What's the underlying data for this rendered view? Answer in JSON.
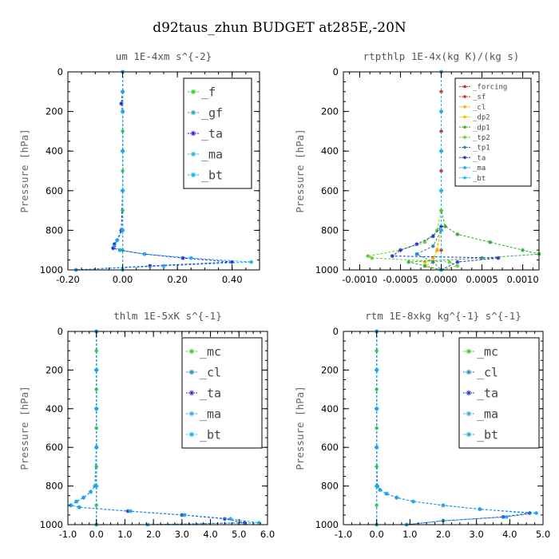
{
  "figure": {
    "title": "d92taus_zhun  BUDGET at285E,-20N"
  },
  "chart_data": [
    {
      "type": "line",
      "title": "um   1E-4xm  s^{-2}",
      "ylabel": "Pressure [hPa]",
      "xlim": [
        -0.2,
        0.5
      ],
      "ylim": [
        1000,
        0
      ],
      "grid": false,
      "xticks": [
        -0.2,
        0.0,
        0.2,
        0.4
      ],
      "xtick_labels": [
        "-0.20",
        "0.00",
        "0.20",
        "0.40"
      ],
      "yticks": [
        0,
        200,
        400,
        600,
        800,
        1000
      ],
      "legend": {
        "position": "top-right",
        "entries": [
          "_f",
          "_gf",
          "_ta",
          "_ma",
          "_bt"
        ]
      },
      "series": [
        {
          "name": "_f",
          "color": "#33cc33",
          "y": [
            0,
            100,
            200,
            300,
            400,
            500,
            600,
            700,
            800,
            900,
            1000
          ],
          "x": [
            0,
            0,
            0,
            0,
            0,
            0,
            0,
            0,
            0,
            0,
            0
          ]
        },
        {
          "name": "_gf",
          "color": "#3399cc",
          "y": [
            0,
            200,
            400,
            600,
            800,
            1000
          ],
          "x": [
            0,
            0,
            0,
            0,
            0,
            0
          ]
        },
        {
          "name": "_ta",
          "color": "#2222cc",
          "y": [
            0,
            100,
            160,
            200,
            400,
            600,
            800,
            850,
            870,
            890,
            900,
            920,
            940,
            960,
            980,
            1000
          ],
          "x": [
            0,
            0,
            -0.005,
            0,
            0,
            0,
            -0.005,
            -0.02,
            -0.03,
            -0.035,
            -0.01,
            0.08,
            0.22,
            0.4,
            0.1,
            -0.17
          ]
        },
        {
          "name": "_ma",
          "color": "#33aadd",
          "y": [
            0,
            200,
            400,
            600,
            800,
            1000
          ],
          "x": [
            0,
            0,
            0,
            0,
            0,
            0
          ]
        },
        {
          "name": "_bt",
          "color": "#11aaee",
          "y": [
            0,
            100,
            200,
            400,
            600,
            800,
            850,
            880,
            900,
            920,
            940,
            960,
            980,
            1000
          ],
          "x": [
            0,
            0,
            0,
            0,
            0,
            0,
            -0.02,
            -0.03,
            -0.01,
            0.08,
            0.25,
            0.47,
            0.15,
            -0.17
          ]
        }
      ]
    },
    {
      "type": "line",
      "title": "rtpthlp  1E-4x(kg K)/(kg s)",
      "ylabel": "Pressure [hPa]",
      "xlim": [
        -0.0012,
        0.0012
      ],
      "ylim": [
        1000,
        0
      ],
      "grid": false,
      "xticks": [
        -0.001,
        -0.0005,
        0.0,
        0.0005,
        0.001
      ],
      "xtick_labels": [
        "-0.0010",
        "-0.0005",
        "0.0000",
        "0.0005",
        "0.0010"
      ],
      "yticks": [
        0,
        200,
        400,
        600,
        800,
        1000
      ],
      "legend": {
        "position": "top-right",
        "entries": [
          "_forcing",
          "_sf",
          "_cl",
          "_dp2",
          "_dp1",
          "_tp2",
          "_tp1",
          "_ta",
          "_ma",
          "_bt"
        ]
      },
      "series": [
        {
          "name": "_forcing",
          "color": "#cc2222",
          "y": [
            0,
            200,
            400,
            600,
            800,
            1000
          ],
          "x": [
            0,
            0,
            0,
            0,
            0,
            0
          ]
        },
        {
          "name": "_sf",
          "color": "#dd2222",
          "y": [
            0,
            100,
            200,
            300,
            400,
            500,
            600,
            700,
            800,
            900,
            1000
          ],
          "x": [
            0,
            0,
            0,
            0,
            0,
            0,
            0,
            0,
            0,
            0,
            0
          ]
        },
        {
          "name": "_cl",
          "color": "#ffaa00",
          "y": [
            0,
            800,
            900,
            940,
            960,
            980,
            1000
          ],
          "x": [
            0,
            0,
            -5e-05,
            -0.0001,
            -0.0002,
            -0.0002,
            0
          ]
        },
        {
          "name": "_dp2",
          "color": "#ddcc00",
          "y": [
            0,
            800,
            960,
            980,
            1000
          ],
          "x": [
            0,
            0,
            -0.0001,
            -0.0002,
            0
          ]
        },
        {
          "name": "_dp1",
          "color": "#33aa33",
          "y": [
            0,
            700,
            780,
            820,
            860,
            900,
            920,
            940,
            960,
            980,
            1000
          ],
          "x": [
            0,
            0,
            5e-05,
            0.0002,
            0.0006,
            0.001,
            0.0012,
            0.0005,
            -0.0004,
            -0.0002,
            0
          ]
        },
        {
          "name": "_tp2",
          "color": "#66cc33",
          "y": [
            0,
            700,
            800,
            860,
            900,
            930,
            940,
            960,
            980,
            1000
          ],
          "x": [
            0,
            0,
            -5e-05,
            -0.0002,
            -0.0005,
            -0.0009,
            -0.00085,
            0.0001,
            0.0002,
            0
          ]
        },
        {
          "name": "_tp1",
          "color": "#2288aa",
          "y": [
            0,
            800,
            880,
            920,
            960,
            1000
          ],
          "x": [
            0,
            0,
            -0.0001,
            -0.0003,
            -0.0001,
            0
          ]
        },
        {
          "name": "_ta",
          "color": "#2233cc",
          "y": [
            0,
            780,
            830,
            870,
            900,
            930,
            940,
            960,
            1000
          ],
          "x": [
            0,
            0,
            -0.0001,
            -0.0003,
            -0.0005,
            -0.0006,
            0.0007,
            0.0002,
            0
          ]
        },
        {
          "name": "_ma",
          "color": "#3399dd",
          "y": [
            0,
            200,
            400,
            600,
            800,
            1000
          ],
          "x": [
            0,
            0,
            0,
            0,
            0,
            0
          ]
        },
        {
          "name": "_bt",
          "color": "#11bbee",
          "y": [
            0,
            200,
            400,
            600,
            800,
            1000
          ],
          "x": [
            0,
            0,
            0,
            0,
            0,
            0
          ]
        }
      ]
    },
    {
      "type": "line",
      "title": "thlm   1E-5xK  s^{-1}",
      "ylabel": "Pressure [hPa]",
      "xlim": [
        -1.0,
        6.0
      ],
      "ylim": [
        1000,
        0
      ],
      "grid": false,
      "xticks": [
        -1,
        0,
        1,
        2,
        3,
        4,
        5,
        6
      ],
      "xtick_labels": [
        "-1.0",
        "0.0",
        "1.0",
        "2.0",
        "3.0",
        "4.0",
        "5.0",
        "6.0"
      ],
      "yticks": [
        0,
        200,
        400,
        600,
        800,
        1000
      ],
      "legend": {
        "position": "top-right",
        "entries": [
          "_mc",
          "_cl",
          "_ta",
          "_ma",
          "_bt"
        ]
      },
      "series": [
        {
          "name": "_mc",
          "color": "#33cc33",
          "y": [
            0,
            100,
            200,
            300,
            400,
            500,
            600,
            700,
            800,
            900,
            1000
          ],
          "x": [
            0,
            0,
            0,
            0,
            0,
            0,
            0,
            0,
            0,
            0,
            0
          ]
        },
        {
          "name": "_cl",
          "color": "#2288bb",
          "y": [
            0,
            200,
            400,
            600,
            800,
            1000
          ],
          "x": [
            0,
            0,
            0,
            0,
            0,
            0
          ]
        },
        {
          "name": "_ta",
          "color": "#2233cc",
          "y": [
            0,
            200,
            400,
            600,
            800,
            830,
            860,
            880,
            900,
            910,
            930,
            950,
            970,
            990,
            1000
          ],
          "x": [
            0,
            0,
            0,
            0,
            -0.05,
            -0.2,
            -0.45,
            -0.7,
            -0.9,
            -0.6,
            1.1,
            3.0,
            4.5,
            5.2,
            1.8
          ]
        },
        {
          "name": "_ma",
          "color": "#33aadd",
          "y": [
            0,
            200,
            400,
            600,
            800,
            1000
          ],
          "x": [
            0,
            0,
            0,
            0,
            0,
            0
          ]
        },
        {
          "name": "_bt",
          "color": "#11aaee",
          "y": [
            0,
            200,
            400,
            600,
            800,
            830,
            860,
            880,
            900,
            910,
            930,
            950,
            970,
            990,
            1000
          ],
          "x": [
            0,
            0,
            0,
            0,
            -0.05,
            -0.2,
            -0.45,
            -0.7,
            -0.9,
            -0.6,
            1.2,
            3.1,
            4.7,
            5.7,
            1.8
          ]
        }
      ]
    },
    {
      "type": "line",
      "title": "rtm   1E-8xkg  kg^{-1}  s^{-1}",
      "ylabel": "Pressure [hPa]",
      "xlim": [
        -1.0,
        5.0
      ],
      "ylim": [
        1000,
        0
      ],
      "grid": false,
      "xticks": [
        -1,
        0,
        1,
        2,
        3,
        4,
        5
      ],
      "xtick_labels": [
        "-1.0",
        "0.0",
        "1.0",
        "2.0",
        "3.0",
        "4.0",
        "5.0"
      ],
      "yticks": [
        0,
        200,
        400,
        600,
        800,
        1000
      ],
      "legend": {
        "position": "top-right",
        "entries": [
          "_mc",
          "_cl",
          "_ta",
          "_ma",
          "_bt"
        ]
      },
      "series": [
        {
          "name": "_mc",
          "color": "#33cc33",
          "y": [
            0,
            100,
            200,
            300,
            400,
            500,
            600,
            700,
            800,
            900,
            1000
          ],
          "x": [
            0,
            0,
            0,
            0,
            0,
            0,
            0,
            0,
            0,
            0,
            0
          ]
        },
        {
          "name": "_cl",
          "color": "#2288bb",
          "y": [
            0,
            200,
            400,
            600,
            800,
            1000
          ],
          "x": [
            0,
            0,
            0,
            0,
            0,
            0
          ]
        },
        {
          "name": "_ta",
          "color": "#2233cc",
          "y": [
            0,
            200,
            400,
            600,
            800,
            820,
            840,
            860,
            880,
            900,
            920,
            940,
            960,
            980,
            1000
          ],
          "x": [
            0,
            0,
            0,
            0,
            0.02,
            0.1,
            0.3,
            0.6,
            1.1,
            2.0,
            3.1,
            4.6,
            3.8,
            2.0,
            0.9
          ]
        },
        {
          "name": "_ma",
          "color": "#33aadd",
          "y": [
            0,
            200,
            400,
            600,
            800,
            1000
          ],
          "x": [
            0,
            0,
            0,
            0,
            0,
            0
          ]
        },
        {
          "name": "_bt",
          "color": "#11aaee",
          "y": [
            0,
            200,
            400,
            600,
            800,
            820,
            840,
            860,
            880,
            900,
            920,
            940,
            960,
            980,
            1000
          ],
          "x": [
            0,
            0,
            0,
            0,
            0.02,
            0.1,
            0.3,
            0.6,
            1.1,
            2.0,
            3.1,
            4.8,
            3.9,
            2.0,
            0.9
          ]
        }
      ]
    }
  ]
}
